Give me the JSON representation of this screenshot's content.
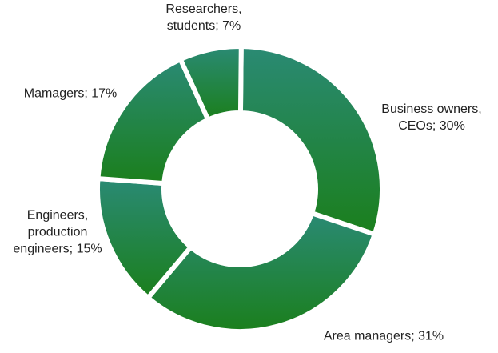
{
  "chart_data": {
    "type": "donut",
    "values": [
      30,
      31,
      15,
      17,
      7
    ],
    "value_labels": [
      "Business owners, CEOs; 30%",
      "Area managers; 31%",
      "Engineers, production engineers; 15%",
      "Mamagers; 17%",
      "Researchers, students; 7%"
    ],
    "gradient": [
      "#2a8a74",
      "#1b7f1c"
    ]
  }
}
